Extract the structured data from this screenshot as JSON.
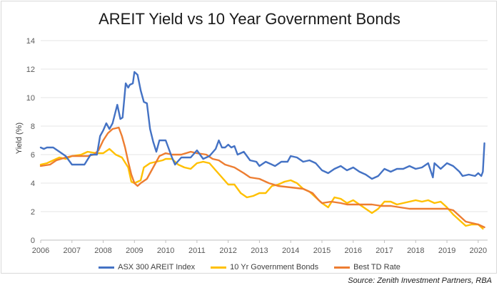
{
  "chart_data": {
    "type": "line",
    "title": "AREIT Yield vs 10 Year Government Bonds",
    "ylabel": "Yield (%)",
    "xlabel": "",
    "ylim": [
      0,
      14
    ],
    "xlim": [
      2006,
      2020.3
    ],
    "yticks": [
      "0",
      "2",
      "4",
      "6",
      "8",
      "10",
      "12",
      "14"
    ],
    "xticks": [
      "2006",
      "2007",
      "2008",
      "2009",
      "2010",
      "2011",
      "2012",
      "2013",
      "2014",
      "2015",
      "2016",
      "2017",
      "2018",
      "2019",
      "2020"
    ],
    "grid": true,
    "legend_position": "bottom",
    "source": "Source: Zenith Investment Partners, RBA",
    "series": [
      {
        "name": "ASX 300 AREIT Index",
        "color": "#4472C4",
        "points": [
          [
            2006.0,
            6.5
          ],
          [
            2006.1,
            6.4
          ],
          [
            2006.2,
            6.5
          ],
          [
            2006.4,
            6.5
          ],
          [
            2006.6,
            6.2
          ],
          [
            2006.8,
            5.9
          ],
          [
            2007.0,
            5.3
          ],
          [
            2007.2,
            5.3
          ],
          [
            2007.4,
            5.3
          ],
          [
            2007.6,
            6.0
          ],
          [
            2007.8,
            6.0
          ],
          [
            2007.9,
            7.3
          ],
          [
            2008.0,
            7.7
          ],
          [
            2008.1,
            8.2
          ],
          [
            2008.2,
            7.8
          ],
          [
            2008.3,
            8.2
          ],
          [
            2008.45,
            9.5
          ],
          [
            2008.55,
            8.5
          ],
          [
            2008.62,
            8.6
          ],
          [
            2008.72,
            11.0
          ],
          [
            2008.8,
            10.7
          ],
          [
            2008.85,
            10.9
          ],
          [
            2008.95,
            11.0
          ],
          [
            2009.0,
            11.8
          ],
          [
            2009.1,
            11.6
          ],
          [
            2009.2,
            10.5
          ],
          [
            2009.3,
            9.7
          ],
          [
            2009.4,
            9.6
          ],
          [
            2009.5,
            7.8
          ],
          [
            2009.6,
            6.9
          ],
          [
            2009.7,
            6.2
          ],
          [
            2009.8,
            7.0
          ],
          [
            2009.9,
            7.0
          ],
          [
            2010.0,
            7.0
          ],
          [
            2010.2,
            5.8
          ],
          [
            2010.3,
            5.3
          ],
          [
            2010.5,
            5.8
          ],
          [
            2010.8,
            5.8
          ],
          [
            2011.0,
            6.3
          ],
          [
            2011.2,
            5.7
          ],
          [
            2011.4,
            5.9
          ],
          [
            2011.6,
            6.4
          ],
          [
            2011.7,
            7.0
          ],
          [
            2011.8,
            6.5
          ],
          [
            2011.9,
            6.5
          ],
          [
            2012.0,
            6.7
          ],
          [
            2012.1,
            6.5
          ],
          [
            2012.2,
            6.6
          ],
          [
            2012.3,
            6.0
          ],
          [
            2012.5,
            6.2
          ],
          [
            2012.7,
            5.6
          ],
          [
            2012.9,
            5.5
          ],
          [
            2013.0,
            5.2
          ],
          [
            2013.2,
            5.5
          ],
          [
            2013.5,
            5.2
          ],
          [
            2013.7,
            5.5
          ],
          [
            2013.9,
            5.5
          ],
          [
            2014.0,
            5.9
          ],
          [
            2014.2,
            5.8
          ],
          [
            2014.4,
            5.5
          ],
          [
            2014.6,
            5.6
          ],
          [
            2014.8,
            5.4
          ],
          [
            2015.0,
            4.9
          ],
          [
            2015.2,
            4.7
          ],
          [
            2015.4,
            5.0
          ],
          [
            2015.6,
            5.2
          ],
          [
            2015.8,
            4.9
          ],
          [
            2016.0,
            5.1
          ],
          [
            2016.2,
            4.8
          ],
          [
            2016.4,
            4.6
          ],
          [
            2016.6,
            4.3
          ],
          [
            2016.8,
            4.5
          ],
          [
            2017.0,
            5.0
          ],
          [
            2017.2,
            4.8
          ],
          [
            2017.4,
            5.0
          ],
          [
            2017.6,
            5.0
          ],
          [
            2017.8,
            5.2
          ],
          [
            2018.0,
            5.0
          ],
          [
            2018.2,
            5.1
          ],
          [
            2018.4,
            5.4
          ],
          [
            2018.55,
            4.4
          ],
          [
            2018.6,
            5.4
          ],
          [
            2018.8,
            5.0
          ],
          [
            2019.0,
            5.4
          ],
          [
            2019.2,
            5.2
          ],
          [
            2019.4,
            4.8
          ],
          [
            2019.5,
            4.5
          ],
          [
            2019.7,
            4.6
          ],
          [
            2019.9,
            4.5
          ],
          [
            2020.0,
            4.7
          ],
          [
            2020.1,
            4.5
          ],
          [
            2020.15,
            4.8
          ],
          [
            2020.2,
            6.8
          ]
        ]
      },
      {
        "name": "10 Yr Government Bonds",
        "color": "#FFC000",
        "points": [
          [
            2006.0,
            5.3
          ],
          [
            2006.2,
            5.4
          ],
          [
            2006.4,
            5.6
          ],
          [
            2006.6,
            5.8
          ],
          [
            2006.8,
            5.7
          ],
          [
            2007.0,
            5.9
          ],
          [
            2007.3,
            6.0
          ],
          [
            2007.5,
            6.2
          ],
          [
            2007.8,
            6.1
          ],
          [
            2008.0,
            6.1
          ],
          [
            2008.2,
            6.4
          ],
          [
            2008.4,
            6.0
          ],
          [
            2008.6,
            5.8
          ],
          [
            2008.8,
            5.1
          ],
          [
            2008.9,
            4.1
          ],
          [
            2009.0,
            4.0
          ],
          [
            2009.2,
            4.2
          ],
          [
            2009.3,
            5.1
          ],
          [
            2009.5,
            5.4
          ],
          [
            2009.7,
            5.5
          ],
          [
            2009.9,
            5.6
          ],
          [
            2010.0,
            5.7
          ],
          [
            2010.2,
            5.7
          ],
          [
            2010.4,
            5.3
          ],
          [
            2010.6,
            5.1
          ],
          [
            2010.8,
            5.0
          ],
          [
            2011.0,
            5.4
          ],
          [
            2011.2,
            5.5
          ],
          [
            2011.4,
            5.4
          ],
          [
            2011.6,
            4.9
          ],
          [
            2011.8,
            4.4
          ],
          [
            2012.0,
            3.9
          ],
          [
            2012.2,
            3.9
          ],
          [
            2012.4,
            3.3
          ],
          [
            2012.6,
            3.0
          ],
          [
            2012.8,
            3.1
          ],
          [
            2013.0,
            3.3
          ],
          [
            2013.2,
            3.3
          ],
          [
            2013.4,
            3.8
          ],
          [
            2013.6,
            3.9
          ],
          [
            2013.8,
            4.1
          ],
          [
            2014.0,
            4.2
          ],
          [
            2014.2,
            4.0
          ],
          [
            2014.4,
            3.6
          ],
          [
            2014.6,
            3.4
          ],
          [
            2014.8,
            3.0
          ],
          [
            2015.0,
            2.6
          ],
          [
            2015.2,
            2.3
          ],
          [
            2015.4,
            3.0
          ],
          [
            2015.6,
            2.9
          ],
          [
            2015.8,
            2.6
          ],
          [
            2016.0,
            2.8
          ],
          [
            2016.2,
            2.5
          ],
          [
            2016.4,
            2.2
          ],
          [
            2016.6,
            1.9
          ],
          [
            2016.8,
            2.2
          ],
          [
            2017.0,
            2.7
          ],
          [
            2017.2,
            2.7
          ],
          [
            2017.4,
            2.5
          ],
          [
            2017.6,
            2.6
          ],
          [
            2017.8,
            2.7
          ],
          [
            2018.0,
            2.8
          ],
          [
            2018.2,
            2.7
          ],
          [
            2018.4,
            2.8
          ],
          [
            2018.6,
            2.6
          ],
          [
            2018.8,
            2.7
          ],
          [
            2019.0,
            2.3
          ],
          [
            2019.2,
            1.8
          ],
          [
            2019.4,
            1.4
          ],
          [
            2019.6,
            1.0
          ],
          [
            2019.8,
            1.1
          ],
          [
            2020.0,
            1.1
          ],
          [
            2020.15,
            0.8
          ]
        ]
      },
      {
        "name": "Best TD Rate",
        "color": "#ED7D31",
        "points": [
          [
            2006.0,
            5.2
          ],
          [
            2006.3,
            5.3
          ],
          [
            2006.5,
            5.6
          ],
          [
            2006.8,
            5.8
          ],
          [
            2007.0,
            5.9
          ],
          [
            2007.5,
            5.9
          ],
          [
            2007.7,
            6.0
          ],
          [
            2007.85,
            6.3
          ],
          [
            2008.0,
            7.0
          ],
          [
            2008.15,
            7.5
          ],
          [
            2008.3,
            7.8
          ],
          [
            2008.5,
            7.9
          ],
          [
            2008.6,
            7.3
          ],
          [
            2008.7,
            6.5
          ],
          [
            2008.8,
            5.5
          ],
          [
            2008.9,
            4.6
          ],
          [
            2009.0,
            4.0
          ],
          [
            2009.1,
            3.8
          ],
          [
            2009.2,
            4.0
          ],
          [
            2009.4,
            4.3
          ],
          [
            2009.6,
            5.1
          ],
          [
            2009.8,
            5.9
          ],
          [
            2010.0,
            6.1
          ],
          [
            2010.2,
            6.0
          ],
          [
            2010.5,
            6.0
          ],
          [
            2010.8,
            6.2
          ],
          [
            2011.0,
            6.1
          ],
          [
            2011.3,
            6.0
          ],
          [
            2011.5,
            5.7
          ],
          [
            2011.7,
            5.6
          ],
          [
            2011.9,
            5.3
          ],
          [
            2012.2,
            5.1
          ],
          [
            2012.5,
            4.7
          ],
          [
            2012.7,
            4.4
          ],
          [
            2013.0,
            4.3
          ],
          [
            2013.3,
            4.0
          ],
          [
            2013.6,
            3.8
          ],
          [
            2014.0,
            3.7
          ],
          [
            2014.4,
            3.6
          ],
          [
            2014.7,
            3.3
          ],
          [
            2014.9,
            2.8
          ],
          [
            2015.0,
            2.6
          ],
          [
            2015.3,
            2.7
          ],
          [
            2015.6,
            2.6
          ],
          [
            2015.8,
            2.5
          ],
          [
            2016.0,
            2.5
          ],
          [
            2016.3,
            2.5
          ],
          [
            2016.6,
            2.5
          ],
          [
            2016.9,
            2.4
          ],
          [
            2017.2,
            2.4
          ],
          [
            2017.5,
            2.3
          ],
          [
            2017.8,
            2.2
          ],
          [
            2018.0,
            2.2
          ],
          [
            2018.4,
            2.2
          ],
          [
            2018.8,
            2.2
          ],
          [
            2019.0,
            2.2
          ],
          [
            2019.2,
            2.1
          ],
          [
            2019.4,
            1.7
          ],
          [
            2019.6,
            1.3
          ],
          [
            2019.8,
            1.2
          ],
          [
            2020.0,
            1.1
          ],
          [
            2020.2,
            0.9
          ]
        ]
      }
    ]
  }
}
